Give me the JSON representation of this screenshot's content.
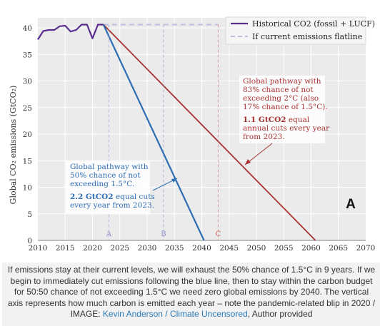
{
  "chart_data": {
    "type": "line",
    "title": "",
    "xlabel": "",
    "ylabel": "Global CO₂ emissions (GtCO₂)",
    "xlim": [
      2010,
      2070
    ],
    "ylim": [
      0,
      42
    ],
    "x_ticks": [
      "2010",
      "2015",
      "2020",
      "2025",
      "2030",
      "2035",
      "2040",
      "2045",
      "2050",
      "2055",
      "2060",
      "2065",
      "2070"
    ],
    "y_ticks": [
      "0",
      "5",
      "10",
      "15",
      "20",
      "25",
      "30",
      "35",
      "40"
    ],
    "grid": true,
    "legend_position": "top-right",
    "colors": {
      "historical": "#5b2d8e",
      "flatline": "#c4b8dc",
      "blue": "#2e6db4",
      "red": "#a83232",
      "point_a": "#8f8fc7",
      "point_b": "#8f8fc7",
      "point_c": "#c86464"
    },
    "series": [
      {
        "name": "Historical CO2 (fossil + LUCF)",
        "x": [
          2010,
          2011,
          2012,
          2013,
          2014,
          2015,
          2016,
          2017,
          2018,
          2019,
          2020,
          2021,
          2022
        ],
        "y": [
          37.8,
          39.4,
          39.6,
          39.6,
          40.3,
          40.4,
          39.3,
          39.6,
          40.6,
          40.6,
          38.0,
          40.6,
          40.6
        ]
      },
      {
        "name": "If current emissions flatline",
        "x": [
          2022,
          2043
        ],
        "y": [
          40.6,
          40.6
        ]
      },
      {
        "name": "",
        "x": [
          2022,
          2040.4
        ],
        "y": [
          40.6,
          0
        ]
      },
      {
        "name": "",
        "x": [
          2022,
          2060.8
        ],
        "y": [
          40.6,
          0
        ]
      }
    ],
    "point_labels": [
      {
        "label": "A",
        "x": 2023
      },
      {
        "label": "B",
        "x": 2033
      },
      {
        "label": "C",
        "x": 2043
      }
    ],
    "annotations": {
      "blue": {
        "lines": [
          "Global pathway with",
          "50% chance of not",
          "exceeding 1.5°C."
        ],
        "bold": "2.2 GtCO2",
        "rest_lines": [
          " equal cuts",
          "every year from 2023."
        ]
      },
      "red": {
        "lines": [
          "Global pathway with",
          "83% chance of not",
          "exceeding 2°C (also",
          "17% chance of 1.5°C)."
        ],
        "bold": "1.1 GtCO2",
        "rest_lines": [
          " equal",
          "annual cuts every year",
          "from 2023."
        ]
      }
    },
    "panel_letter": "A"
  },
  "caption": {
    "text": "If emissions stay at their current levels, we will exhaust the 50% chance of 1.5°C in 9 years. If we begin to immediately cut emissions following the blue line, then to stay within the carbon budget for 50:50 chance of not exceeding 1.5°C we need zero global emissions by 2040. The vertical axis represents how much carbon is emitted each year – note the pandemic-related blip in 2020 / IMAGE: ",
    "link": "Kevin Anderson / Climate Uncensored",
    "suffix": ", Author provided"
  }
}
